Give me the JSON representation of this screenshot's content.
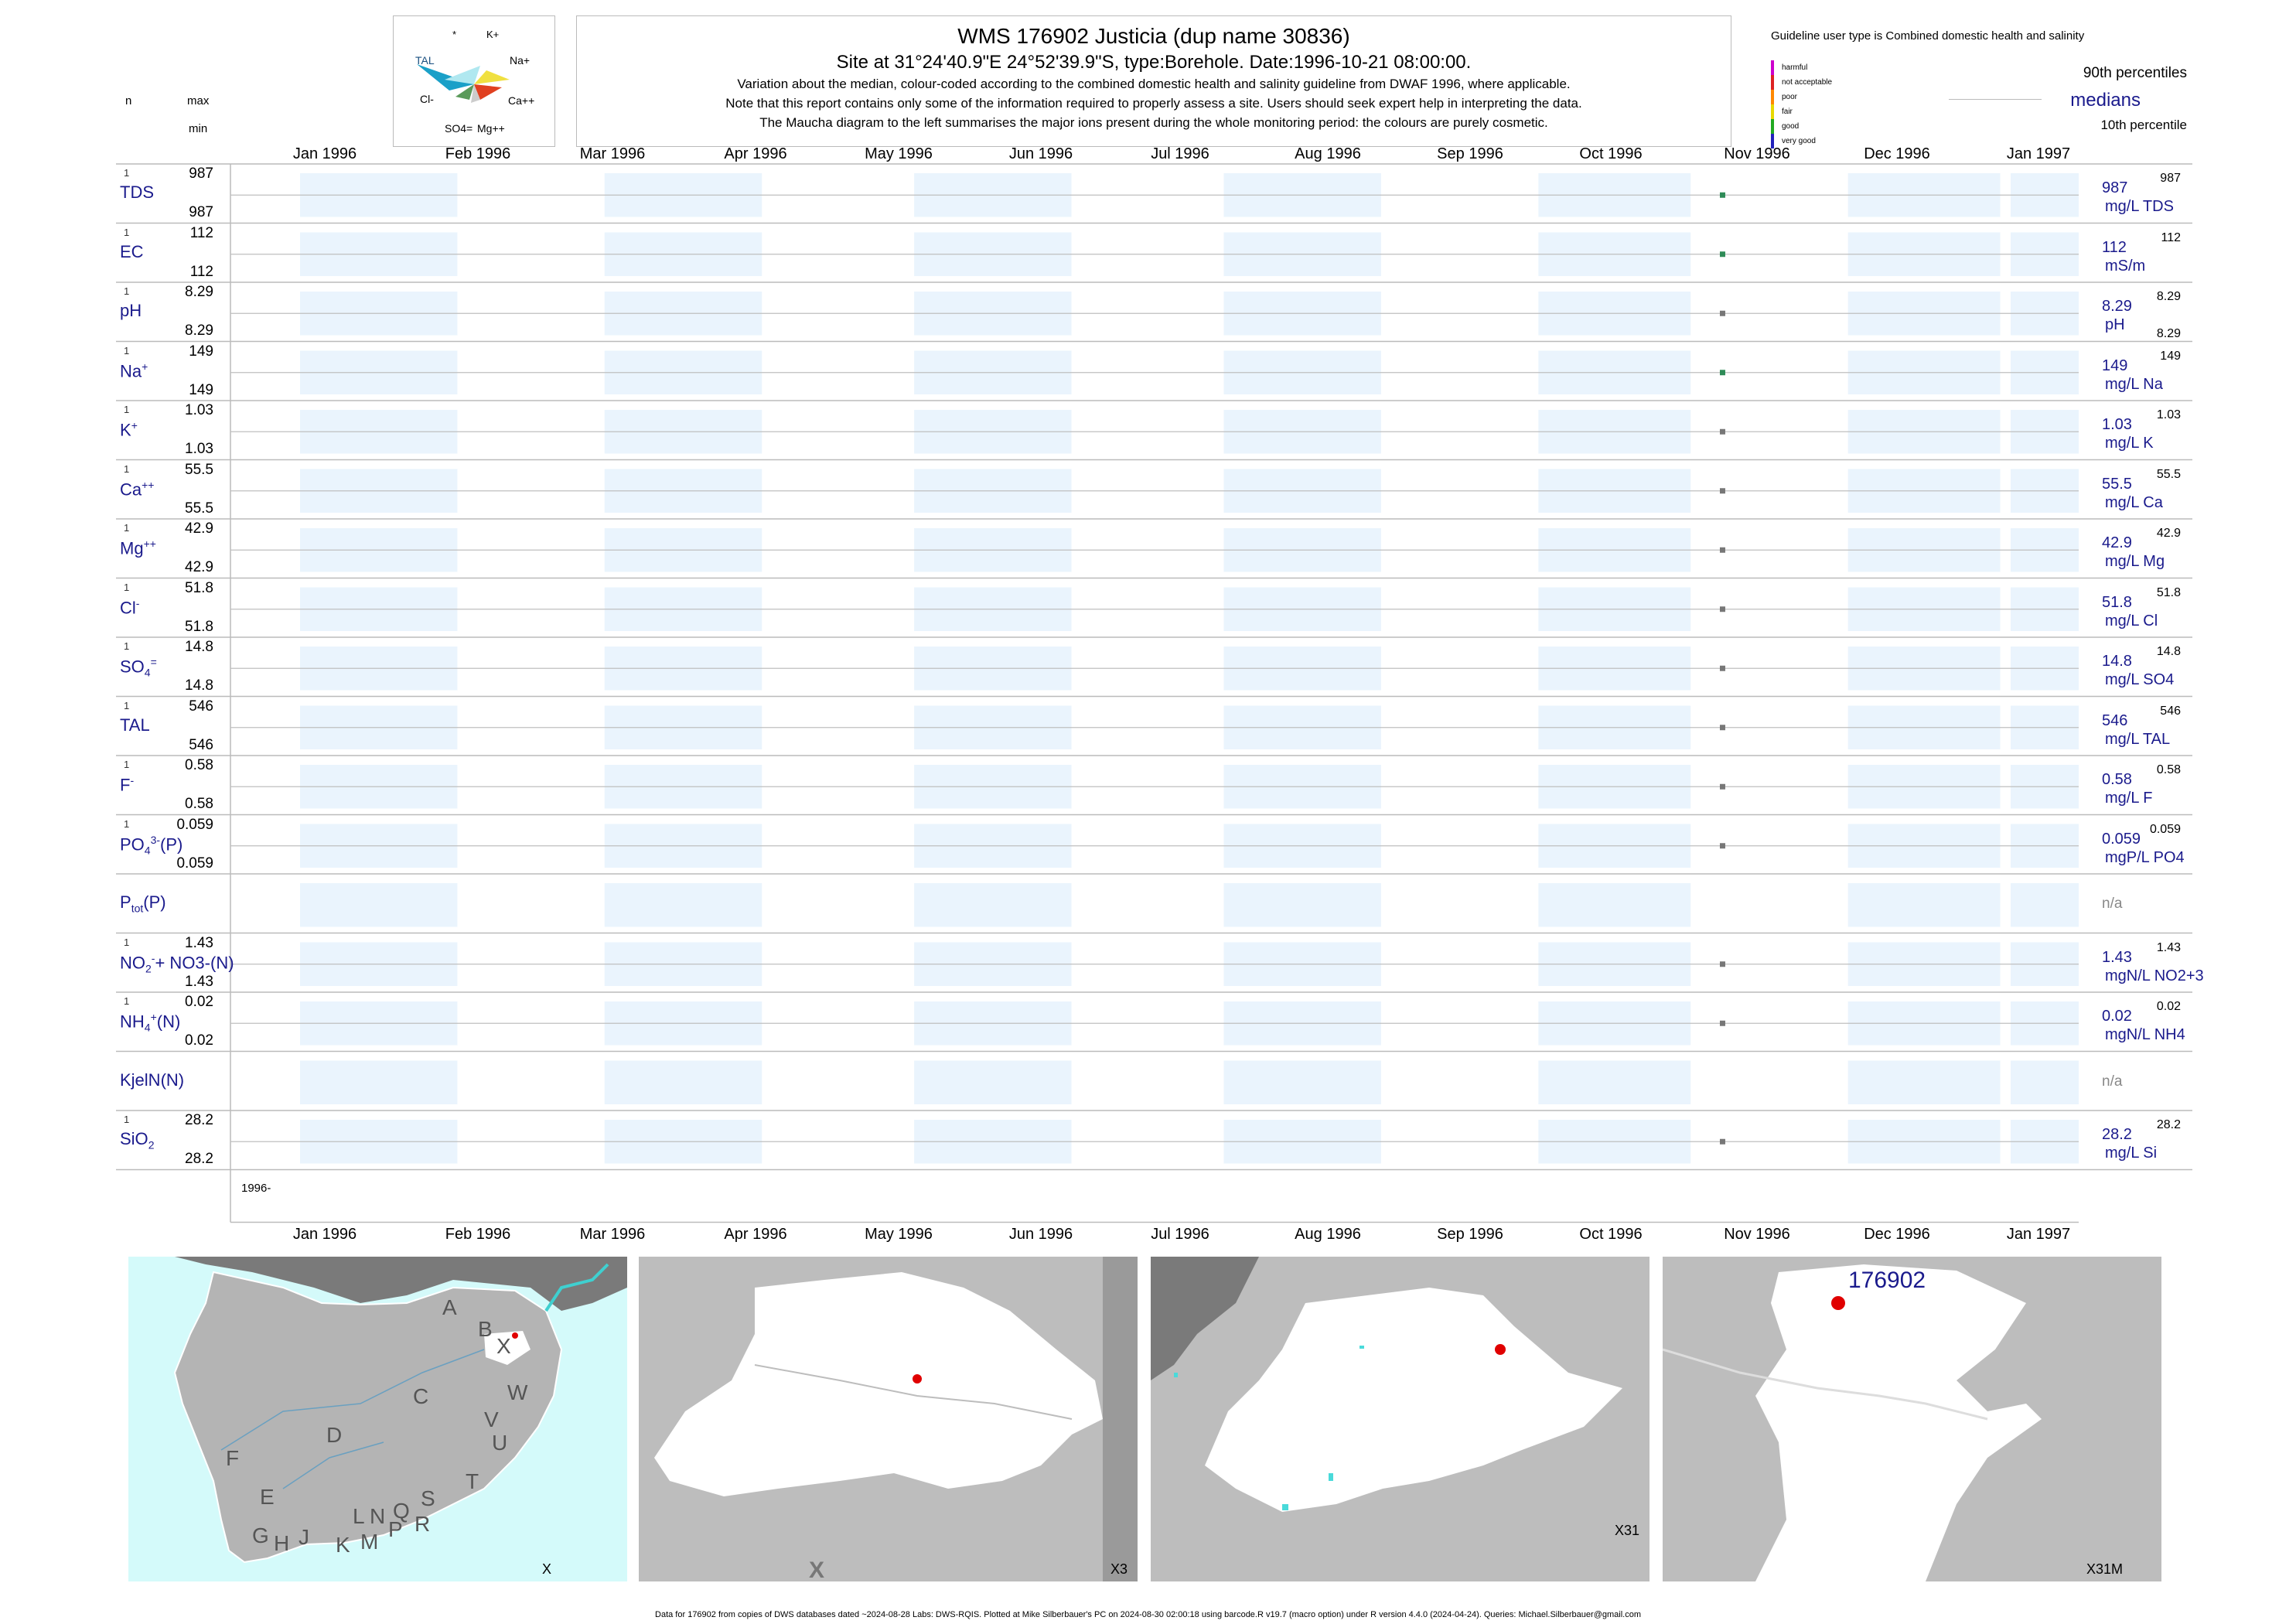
{
  "header": {
    "title": "WMS 176902  Justicia (dup name 30836)",
    "site": "Site at 31°24'40.9\"E 24°52'39.9\"S, type:Borehole. Date:1996-10-21 08:00:00.",
    "note1": "Variation about the median,  colour-coded according to the combined domestic health and salinity guideline from DWAF 1996, where applicable.",
    "note2": "Note that this report contains only some of the information required to properly assess a site. Users should seek expert help in interpreting the data.",
    "note3": "The Maucha diagram to the left summarises the major ions present during the whole monitoring period: the colours are purely cosmetic."
  },
  "column_heads": {
    "n": "n",
    "max": "max",
    "min": "min"
  },
  "maucha": {
    "labels": [
      "*",
      "K+",
      "TAL",
      "Na+",
      "Cl-",
      "Ca++",
      "SO4=",
      "Mg++"
    ],
    "colors": {
      "tal": "#1aa0c8",
      "cl": "#5a9a5a",
      "k": "#b0e8f0",
      "na": "#f0e040",
      "ca": "#e04020",
      "mg": "#cccccc"
    }
  },
  "legend": {
    "guideline": "Guideline user type is Combined domestic health and salinity",
    "classes": [
      {
        "label": "harmful",
        "color": "#cc00cc"
      },
      {
        "label": "not acceptable",
        "color": "#dd2222"
      },
      {
        "label": "poor",
        "color": "#ff8800"
      },
      {
        "label": "fair",
        "color": "#e8d800"
      },
      {
        "label": "good",
        "color": "#22aa22"
      },
      {
        "label": "very good",
        "color": "#2222bb"
      }
    ],
    "p90": "90th percentiles",
    "medians": "medians",
    "p10": "10th percentile"
  },
  "months": [
    "Jan 1996",
    "Feb 1996",
    "Mar 1996",
    "Apr 1996",
    "May 1996",
    "Jun 1996",
    "Jul 1996",
    "Aug 1996",
    "Sep 1996",
    "Oct 1996",
    "Nov 1996",
    "Dec 1996",
    "Jan 1997"
  ],
  "year_label": "1996-",
  "chart_data": {
    "type": "scatter",
    "x_range": [
      "1996-01-01",
      "1997-01-01"
    ],
    "sample_date": "1996-10-21",
    "rows": [
      {
        "label": "TDS",
        "n": "1",
        "max": "987",
        "min": "987",
        "median": "987",
        "unit": "mg/L TDS",
        "p90": "987",
        "p10": "",
        "value": 987,
        "color": "#2e8b57"
      },
      {
        "label": "EC",
        "n": "1",
        "max": "112",
        "min": "112",
        "median": "112",
        "unit": "mS/m",
        "p90": "112",
        "p10": "",
        "value": 112,
        "color": "#2e8b57"
      },
      {
        "label": "pH",
        "n": "1",
        "max": "8.29",
        "min": "8.29",
        "median": "8.29",
        "unit": "pH",
        "p90": "8.29",
        "p10": "8.29",
        "value": 8.29,
        "color": "#777777"
      },
      {
        "label": "Na",
        "sup": "+",
        "n": "1",
        "max": "149",
        "min": "149",
        "median": "149",
        "unit": "mg/L Na",
        "p90": "149",
        "p10": "",
        "value": 149,
        "color": "#2e8b57"
      },
      {
        "label": "K",
        "sup": "+",
        "n": "1",
        "max": "1.03",
        "min": "1.03",
        "median": "1.03",
        "unit": "mg/L K",
        "p90": "1.03",
        "p10": "",
        "value": 1.03,
        "color": "#777777"
      },
      {
        "label": "Ca",
        "sup": "++",
        "n": "1",
        "max": "55.5",
        "min": "55.5",
        "median": "55.5",
        "unit": "mg/L Ca",
        "p90": "55.5",
        "p10": "",
        "value": 55.5,
        "color": "#777777"
      },
      {
        "label": "Mg",
        "sup": "++",
        "n": "1",
        "max": "42.9",
        "min": "42.9",
        "median": "42.9",
        "unit": "mg/L Mg",
        "p90": "42.9",
        "p10": "",
        "value": 42.9,
        "color": "#777777"
      },
      {
        "label": "Cl",
        "sup": "-",
        "n": "1",
        "max": "51.8",
        "min": "51.8",
        "median": "51.8",
        "unit": "mg/L Cl",
        "p90": "51.8",
        "p10": "",
        "value": 51.8,
        "color": "#777777"
      },
      {
        "label": "SO",
        "sub": "4",
        "sup": "=",
        "n": "1",
        "max": "14.8",
        "min": "14.8",
        "median": "14.8",
        "unit": "mg/L SO4",
        "p90": "14.8",
        "p10": "",
        "value": 14.8,
        "color": "#777777"
      },
      {
        "label": "TAL",
        "n": "1",
        "max": "546",
        "min": "546",
        "median": "546",
        "unit": "mg/L TAL",
        "p90": "546",
        "p10": "",
        "value": 546,
        "color": "#777777"
      },
      {
        "label": "F",
        "sup": "-",
        "n": "1",
        "max": "0.58",
        "min": "0.58",
        "median": "0.58",
        "unit": "mg/L F",
        "p90": "0.58",
        "p10": "",
        "value": 0.58,
        "color": "#777777"
      },
      {
        "label": "PO",
        "sub": "4",
        "sup": "3-",
        "tail": "(P)",
        "n": "1",
        "max": "0.059",
        "min": "0.059",
        "median": "0.059",
        "unit": "mgP/L PO4",
        "p90": "0.059",
        "p10": "",
        "value": 0.059,
        "color": "#777777"
      },
      {
        "label": "P",
        "sub": "tot",
        "tail": "(P)",
        "n": "",
        "max": "",
        "min": "",
        "median": "n/a",
        "unit": "",
        "p90": "",
        "p10": "",
        "value": null,
        "color": "#777777"
      },
      {
        "label": "NO",
        "sub": "2",
        "sup": "-",
        "tail": "+ NO3-(N)",
        "n": "1",
        "max": "1.43",
        "min": "1.43",
        "median": "1.43",
        "unit": "mgN/L NO2+3",
        "p90": "1.43",
        "p10": "",
        "value": 1.43,
        "color": "#777777"
      },
      {
        "label": "NH",
        "sub": "4",
        "sup": "+",
        "tail": "(N)",
        "n": "1",
        "max": "0.02",
        "min": "0.02",
        "median": "0.02",
        "unit": "mgN/L NH4",
        "p90": "0.02",
        "p10": "",
        "value": 0.02,
        "color": "#777777"
      },
      {
        "label": "KjelN(N)",
        "n": "",
        "max": "",
        "min": "",
        "median": "n/a",
        "unit": "",
        "p90": "",
        "p10": "",
        "value": null,
        "color": "#777777"
      },
      {
        "label": "SiO",
        "sub": "2",
        "n": "1",
        "max": "28.2",
        "min": "28.2",
        "median": "28.2",
        "unit": "mg/L Si",
        "p90": "28.2",
        "p10": "",
        "value": 28.2,
        "color": "#777777"
      }
    ]
  },
  "maps": {
    "map1": {
      "letters": [
        "A",
        "B",
        "X",
        "C",
        "W",
        "V",
        "U",
        "D",
        "F",
        "T",
        "E",
        "S",
        "L",
        "N",
        "Q",
        "R",
        "G",
        "H",
        "J",
        "K",
        "M",
        "P"
      ],
      "corner": "X"
    },
    "map2": {
      "corner": "X3",
      "mark": "X"
    },
    "map3": {
      "corner": "X31"
    },
    "map4": {
      "corner": "X31M",
      "site": "176902"
    }
  },
  "footer": "Data for 176902 from copies of DWS databases dated ~2024-08-28 Labs: DWS-RQIS. Plotted at Mike Silberbauer's PC on 2024-08-30 02:00:18 using barcode.R v19.7 (macro option) under R version 4.4.0 (2024-04-24). Queries: Michael.Silberbauer@gmail.com"
}
